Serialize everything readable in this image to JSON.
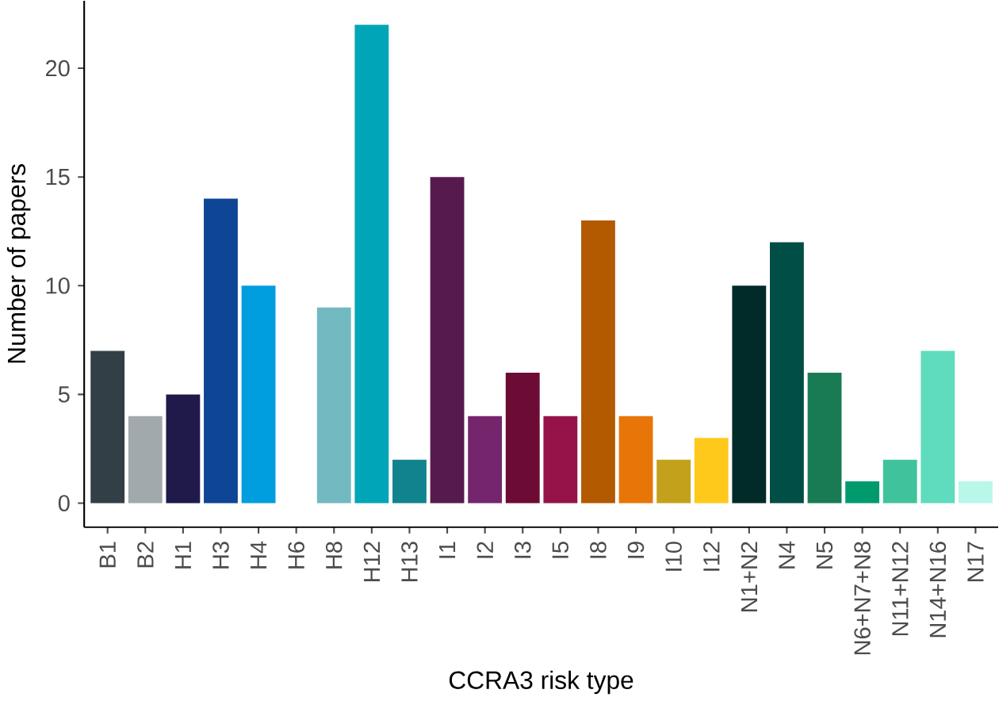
{
  "chart_data": {
    "type": "bar",
    "xlabel": "CCRA3 risk type",
    "ylabel": "Number of papers",
    "categories": [
      "B1",
      "B2",
      "H1",
      "H3",
      "H4",
      "H6",
      "H8",
      "H12",
      "H13",
      "I1",
      "I2",
      "I3",
      "I5",
      "I8",
      "I9",
      "I10",
      "I12",
      "N1+N2",
      "N4",
      "N5",
      "N6+N7+N8",
      "N11+N12",
      "N14+N16",
      "N17"
    ],
    "values": [
      7,
      4,
      5,
      14,
      10,
      0,
      9,
      22,
      2,
      15,
      4,
      6,
      4,
      13,
      4,
      2,
      3,
      10,
      12,
      6,
      1,
      2,
      7,
      1
    ],
    "colors": [
      "#323f47",
      "#a2a9ad",
      "#1f1a4a",
      "#0e4595",
      "#009ddf",
      "#4fb3d9",
      "#72b9c1",
      "#00a6b7",
      "#10838f",
      "#571a4f",
      "#75256c",
      "#6c0c35",
      "#961348",
      "#b35a00",
      "#e87508",
      "#c4a11b",
      "#fec91b",
      "#002b29",
      "#004e45",
      "#187b54",
      "#009a6f",
      "#40c39c",
      "#5fdcbd",
      "#b8f7ea"
    ],
    "ylim": [
      -1.1,
      23.1
    ],
    "yticks": [
      0,
      5,
      10,
      15,
      20
    ],
    "grid": false
  }
}
